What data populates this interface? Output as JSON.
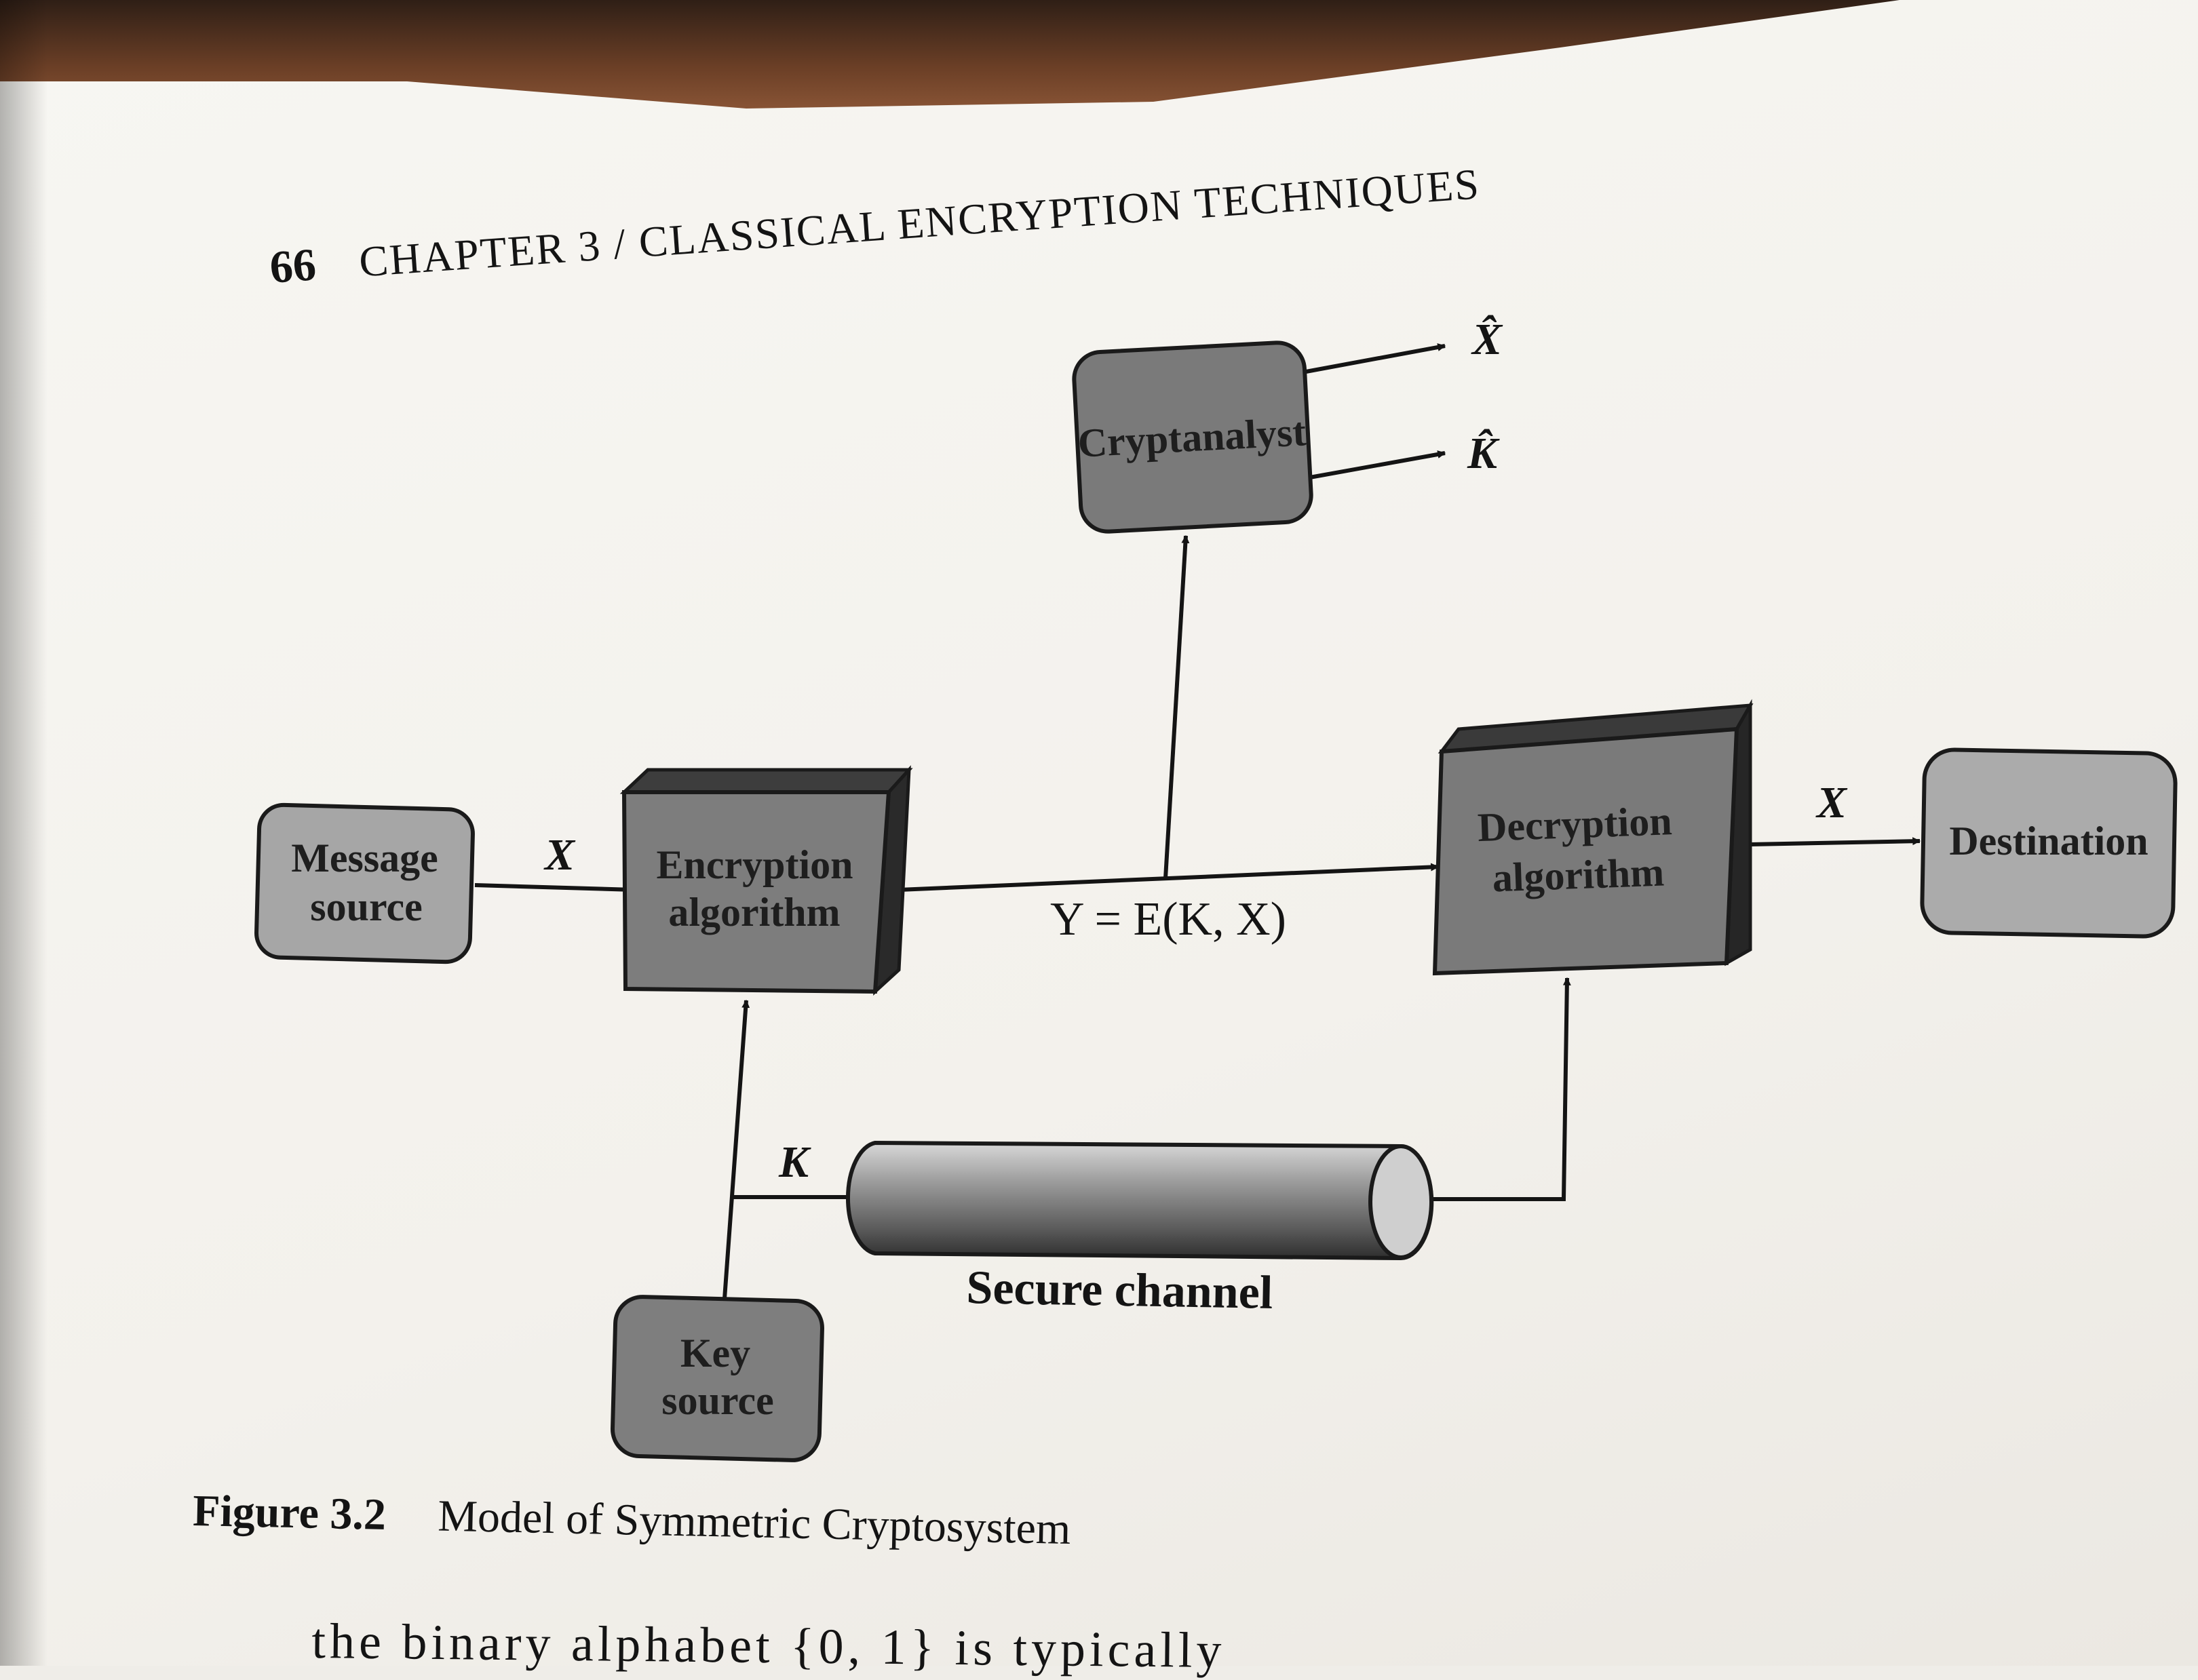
{
  "header": {
    "page_number": "66",
    "chapter_title": "CHAPTER 3 / CLASSICAL ENCRYPTION TECHNIQUES"
  },
  "diagram": {
    "boxes": {
      "message_source": [
        "Message",
        "source"
      ],
      "encryption_algorithm": [
        "Encryption",
        "algorithm"
      ],
      "cryptanalyst": [
        "Cryptanalyst"
      ],
      "decryption_algorithm": [
        "Decryption",
        "algorithm"
      ],
      "destination": [
        "Destination"
      ],
      "key_source": [
        "Key",
        "source"
      ]
    },
    "labels": {
      "plaintext_in": "X",
      "plaintext_out": "X",
      "key": "K",
      "ciphertext": "Y = E(K, X)",
      "estimate_x": "X̂",
      "estimate_k": "K̂",
      "secure_channel": "Secure channel"
    }
  },
  "caption": {
    "number": "Figure 3.2",
    "title": "Model of Symmetric Cryptosystem"
  },
  "body_text": "the binary alphabet {0, 1} is typically"
}
